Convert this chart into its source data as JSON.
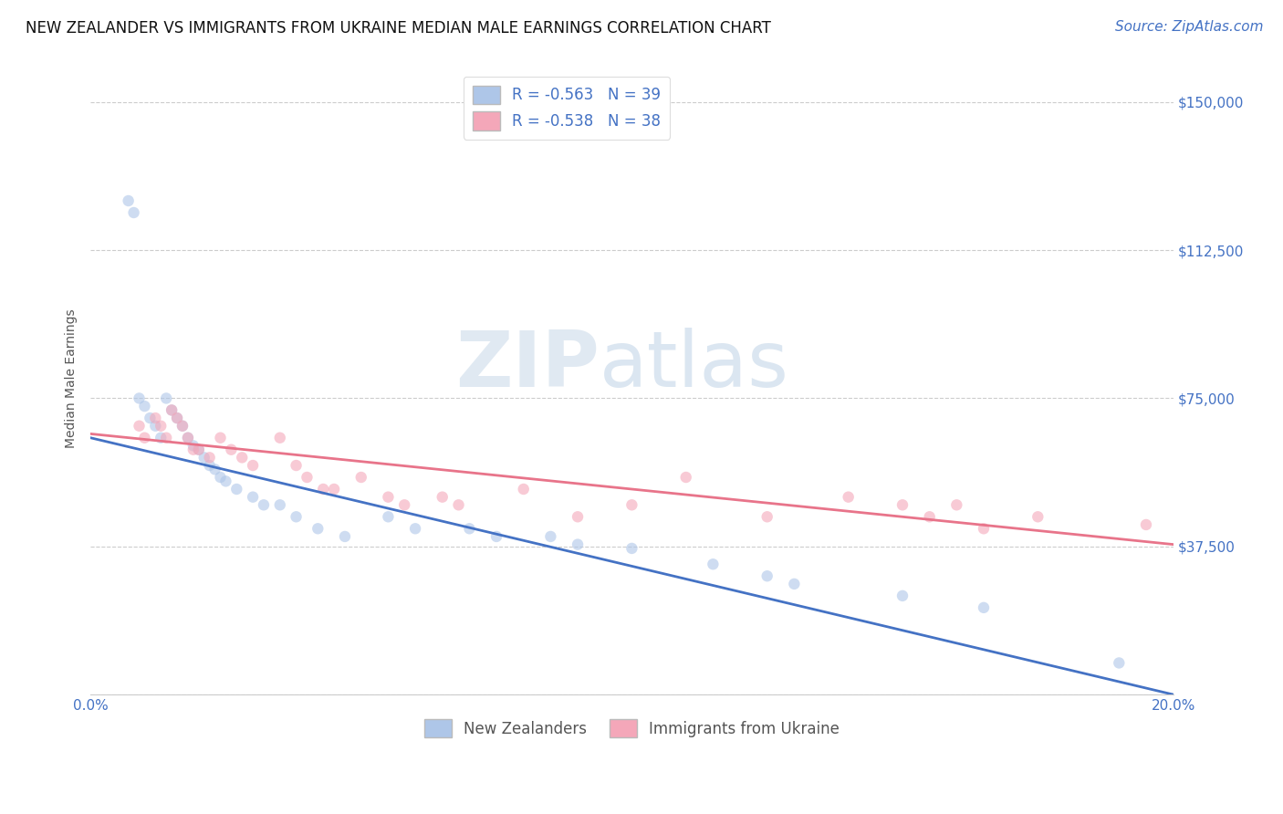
{
  "title": "NEW ZEALANDER VS IMMIGRANTS FROM UKRAINE MEDIAN MALE EARNINGS CORRELATION CHART",
  "source": "Source: ZipAtlas.com",
  "ylabel": "Median Male Earnings",
  "xlim": [
    0.0,
    0.2
  ],
  "ylim": [
    0,
    160000
  ],
  "yticks": [
    0,
    37500,
    75000,
    112500,
    150000
  ],
  "xticks": [
    0.0,
    0.05,
    0.1,
    0.15,
    0.2
  ],
  "legend_entries": [
    {
      "label": "R = -0.563   N = 39",
      "color": "#aec6e8"
    },
    {
      "label": "R = -0.538   N = 38",
      "color": "#f4a7b9"
    }
  ],
  "legend_bottom_labels": [
    "New Zealanders",
    "Immigrants from Ukraine"
  ],
  "blue_color": "#4472c4",
  "pink_color": "#e8748a",
  "blue_scatter_color": "#aec6e8",
  "pink_scatter_color": "#f4a7b9",
  "blue_scatter_x": [
    0.007,
    0.008,
    0.009,
    0.01,
    0.011,
    0.012,
    0.013,
    0.014,
    0.015,
    0.016,
    0.017,
    0.018,
    0.019,
    0.02,
    0.021,
    0.022,
    0.023,
    0.024,
    0.025,
    0.027,
    0.03,
    0.032,
    0.035,
    0.038,
    0.042,
    0.047,
    0.055,
    0.06,
    0.07,
    0.075,
    0.085,
    0.09,
    0.1,
    0.115,
    0.125,
    0.13,
    0.15,
    0.165,
    0.19
  ],
  "blue_scatter_y": [
    125000,
    122000,
    75000,
    73000,
    70000,
    68000,
    65000,
    75000,
    72000,
    70000,
    68000,
    65000,
    63000,
    62000,
    60000,
    58000,
    57000,
    55000,
    54000,
    52000,
    50000,
    48000,
    48000,
    45000,
    42000,
    40000,
    45000,
    42000,
    42000,
    40000,
    40000,
    38000,
    37000,
    33000,
    30000,
    28000,
    25000,
    22000,
    8000
  ],
  "pink_scatter_x": [
    0.009,
    0.01,
    0.012,
    0.013,
    0.014,
    0.015,
    0.016,
    0.017,
    0.018,
    0.019,
    0.02,
    0.022,
    0.024,
    0.026,
    0.028,
    0.03,
    0.035,
    0.038,
    0.04,
    0.043,
    0.045,
    0.05,
    0.055,
    0.058,
    0.065,
    0.068,
    0.08,
    0.09,
    0.1,
    0.11,
    0.125,
    0.14,
    0.15,
    0.155,
    0.16,
    0.165,
    0.175,
    0.195
  ],
  "pink_scatter_y": [
    68000,
    65000,
    70000,
    68000,
    65000,
    72000,
    70000,
    68000,
    65000,
    62000,
    62000,
    60000,
    65000,
    62000,
    60000,
    58000,
    65000,
    58000,
    55000,
    52000,
    52000,
    55000,
    50000,
    48000,
    50000,
    48000,
    52000,
    45000,
    48000,
    55000,
    45000,
    50000,
    48000,
    45000,
    48000,
    42000,
    45000,
    43000
  ],
  "blue_line_x": [
    0.0,
    0.2
  ],
  "blue_line_y": [
    65000,
    0
  ],
  "pink_line_x": [
    0.0,
    0.2
  ],
  "pink_line_y": [
    66000,
    38000
  ],
  "title_fontsize": 12,
  "axis_label_fontsize": 10,
  "tick_fontsize": 11,
  "legend_fontsize": 12,
  "source_fontsize": 11,
  "scatter_size": 80,
  "scatter_alpha": 0.6,
  "grid_color": "#cccccc",
  "background_color": "#ffffff",
  "tick_color": "#4472c4",
  "ylabel_color": "#555555"
}
